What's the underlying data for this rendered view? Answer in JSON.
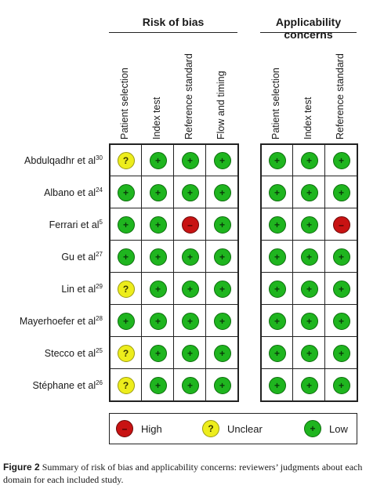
{
  "chart_data": {
    "type": "table",
    "groups": [
      {
        "title": "Risk of bias",
        "columns": [
          "Patient selection",
          "Index test",
          "Reference standard",
          "Flow and timing"
        ]
      },
      {
        "title": "Applicability concerns",
        "columns": [
          "Patient selection",
          "Index test",
          "Reference standard"
        ]
      }
    ],
    "rows": [
      {
        "author": "Abdulqadhr et al",
        "ref": "30",
        "risk": [
          "unclear",
          "low",
          "low",
          "low"
        ],
        "applicability": [
          "low",
          "low",
          "low"
        ]
      },
      {
        "author": "Albano et al",
        "ref": "24",
        "risk": [
          "low",
          "low",
          "low",
          "low"
        ],
        "applicability": [
          "low",
          "low",
          "low"
        ]
      },
      {
        "author": "Ferrari et al",
        "ref": "5",
        "risk": [
          "low",
          "low",
          "high",
          "low"
        ],
        "applicability": [
          "low",
          "low",
          "high"
        ]
      },
      {
        "author": "Gu et al",
        "ref": "27",
        "risk": [
          "low",
          "low",
          "low",
          "low"
        ],
        "applicability": [
          "low",
          "low",
          "low"
        ]
      },
      {
        "author": "Lin et al",
        "ref": "29",
        "risk": [
          "unclear",
          "low",
          "low",
          "low"
        ],
        "applicability": [
          "low",
          "low",
          "low"
        ]
      },
      {
        "author": "Mayerhoefer et al",
        "ref": "28",
        "risk": [
          "low",
          "low",
          "low",
          "low"
        ],
        "applicability": [
          "low",
          "low",
          "low"
        ]
      },
      {
        "author": "Stecco et al",
        "ref": "25",
        "risk": [
          "unclear",
          "low",
          "low",
          "low"
        ],
        "applicability": [
          "low",
          "low",
          "low"
        ]
      },
      {
        "author": "Stéphane et al",
        "ref": "26",
        "risk": [
          "unclear",
          "low",
          "low",
          "low"
        ],
        "applicability": [
          "low",
          "low",
          "low"
        ]
      }
    ],
    "symbols": {
      "high": "–",
      "unclear": "?",
      "low": "+"
    },
    "colors": {
      "high": "#c81313",
      "unclear": "#eded1c",
      "low": "#1fb51f"
    },
    "legend": [
      {
        "key": "high",
        "label": "High"
      },
      {
        "key": "unclear",
        "label": "Unclear"
      },
      {
        "key": "low",
        "label": "Low"
      }
    ]
  },
  "caption": {
    "label": "Figure 2",
    "text": "Summary of risk of bias and applicability concerns: reviewers’ judgments about each domain for each included study."
  }
}
